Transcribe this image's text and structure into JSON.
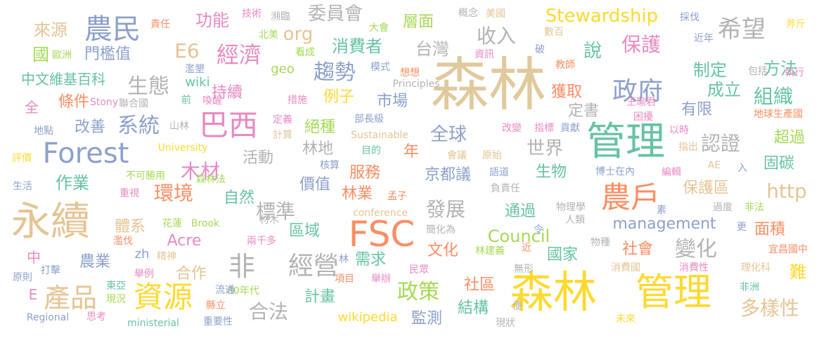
{
  "words": [
    {
      "text": "森林",
      "color": "#e0c99c"
    },
    {
      "text": "森林",
      "color": "#ffd92f"
    },
    {
      "text": "管理",
      "color": "#66c2a5"
    },
    {
      "text": "管理",
      "color": "#ffd92f"
    },
    {
      "text": "永續",
      "color": "#e5c494"
    },
    {
      "text": "FSC",
      "color": "#fc8d62"
    },
    {
      "text": "Forest",
      "color": "#8da0cb"
    },
    {
      "text": "巴西",
      "color": "#e78ac3"
    },
    {
      "text": "農戶",
      "color": "#fc8d62"
    },
    {
      "text": "資源",
      "color": "#ffd92f"
    },
    {
      "text": "農民",
      "color": "#8da0cb"
    },
    {
      "text": "政府",
      "color": "#8da0cb"
    },
    {
      "text": "希望",
      "color": "#b3b3b3"
    },
    {
      "text": "經濟",
      "color": "#e78ac3"
    },
    {
      "text": "產品",
      "color": "#e5c494"
    },
    {
      "text": "非",
      "color": "#b3b3b3"
    },
    {
      "text": "經營",
      "color": "#b3b3b3"
    },
    {
      "text": "趨勢",
      "color": "#8da0cb"
    },
    {
      "text": "系統",
      "color": "#8da0cb"
    },
    {
      "text": "生態",
      "color": "#b3b3b3"
    },
    {
      "text": "Stewardship",
      "color": "#ffd92f"
    },
    {
      "text": "委員會",
      "color": "#b3b3b3"
    },
    {
      "text": "收入",
      "color": "#b3b3b3"
    },
    {
      "text": "保護",
      "color": "#e78ac3"
    },
    {
      "text": "http",
      "color": "#e5c494"
    },
    {
      "text": "Council",
      "color": "#a6d854"
    },
    {
      "text": "management",
      "color": "#8da0cb"
    },
    {
      "text": "政策",
      "color": "#a6d854"
    },
    {
      "text": "變化",
      "color": "#b3b3b3"
    },
    {
      "text": "木材",
      "color": "#e78ac3"
    },
    {
      "text": "環境",
      "color": "#fc8d62"
    },
    {
      "text": "標準",
      "color": "#b3b3b3"
    },
    {
      "text": "發展",
      "color": "#b3b3b3"
    },
    {
      "text": "全球",
      "color": "#8da0cb"
    },
    {
      "text": "世界",
      "color": "#b3b3b3"
    },
    {
      "text": "認證",
      "color": "#b3b3b3"
    },
    {
      "text": "組織",
      "color": "#66c2a5"
    },
    {
      "text": "合法",
      "color": "#b3b3b3"
    },
    {
      "text": "多樣性",
      "color": "#e5c494"
    },
    {
      "text": "E6",
      "color": "#e5c494"
    },
    {
      "text": "org",
      "color": "#e5c494"
    },
    {
      "text": "層面",
      "color": "#a6d854"
    },
    {
      "text": "說",
      "color": "#66c2a5"
    },
    {
      "text": "方法",
      "color": "#66c2a5"
    },
    {
      "text": "制定",
      "color": "#66c2a5"
    },
    {
      "text": "成立",
      "color": "#66c2a5"
    },
    {
      "text": "來源",
      "color": "#e5c494"
    },
    {
      "text": "功能",
      "color": "#e78ac3"
    },
    {
      "text": "消費者",
      "color": "#66c2a5"
    },
    {
      "text": "台灣",
      "color": "#b3b3b3"
    },
    {
      "text": "國",
      "color": "#a6d854"
    },
    {
      "text": "門檻值",
      "color": "#8da0cb"
    },
    {
      "text": "中文維基百科",
      "color": "#66c2a5"
    },
    {
      "text": "條件",
      "color": "#fc8d62"
    },
    {
      "text": "持續",
      "color": "#e78ac3"
    },
    {
      "text": "例子",
      "color": "#ffd92f"
    },
    {
      "text": "市場",
      "color": "#8da0cb"
    },
    {
      "text": "獲取",
      "color": "#fc8d62"
    },
    {
      "text": "定書",
      "color": "#b3b3b3"
    },
    {
      "text": "有限",
      "color": "#8da0cb"
    },
    {
      "text": "改善",
      "color": "#8da0cb"
    },
    {
      "text": "絕種",
      "color": "#a6d854"
    },
    {
      "text": "年",
      "color": "#fc8d62"
    },
    {
      "text": "超過",
      "color": "#a6d854"
    },
    {
      "text": "固碳",
      "color": "#66c2a5"
    },
    {
      "text": "作業",
      "color": "#66c2a5"
    },
    {
      "text": "活動",
      "color": "#b3b3b3"
    },
    {
      "text": "林地",
      "color": "#b3b3b3"
    },
    {
      "text": "服務",
      "color": "#fc8d62"
    },
    {
      "text": "京都議",
      "color": "#8da0cb"
    },
    {
      "text": "生物",
      "color": "#66c2a5"
    },
    {
      "text": "保護區",
      "color": "#e5c494"
    },
    {
      "text": "自然",
      "color": "#66c2a5"
    },
    {
      "text": "價值",
      "color": "#8da0cb"
    },
    {
      "text": "林業",
      "color": "#fc8d62"
    },
    {
      "text": "通過",
      "color": "#66c2a5"
    },
    {
      "text": "面積",
      "color": "#fc8d62"
    },
    {
      "text": "體系",
      "color": "#e5c494"
    },
    {
      "text": "區域",
      "color": "#66c2a5"
    },
    {
      "text": "Acre",
      "color": "#e78ac3"
    },
    {
      "text": "文化",
      "color": "#fc8d62"
    },
    {
      "text": "國家",
      "color": "#66c2a5"
    },
    {
      "text": "社會",
      "color": "#fc8d62"
    },
    {
      "text": "農業",
      "color": "#8da0cb"
    },
    {
      "text": "合作",
      "color": "#e5c494"
    },
    {
      "text": "需求",
      "color": "#66c2a5"
    },
    {
      "text": "社區",
      "color": "#fc8d62"
    },
    {
      "text": "難",
      "color": "#ffd92f"
    },
    {
      "text": "計畫",
      "color": "#66c2a5"
    },
    {
      "text": "結構",
      "color": "#66c2a5"
    },
    {
      "text": "監測",
      "color": "#8da0cb"
    },
    {
      "text": "wikipedia",
      "color": "#ffd92f"
    },
    {
      "text": "中",
      "color": "#e78ac3"
    },
    {
      "text": "E",
      "color": "#e78ac3"
    },
    {
      "text": "全",
      "color": "#e78ac3"
    },
    {
      "text": "wiki",
      "color": "#66c2a5"
    },
    {
      "text": "geo",
      "color": "#a6d854"
    },
    {
      "text": "zh",
      "color": "#8da0cb"
    },
    {
      "text": "University",
      "color": "#ffd92f"
    },
    {
      "text": "Regional",
      "color": "#8da0cb"
    },
    {
      "text": "ministerial",
      "color": "#66c2a5"
    },
    {
      "text": "conference",
      "color": "#e5c494"
    },
    {
      "text": "Sustainable",
      "color": "#e5c494"
    },
    {
      "text": "Principles",
      "color": "#b3b3b3"
    },
    {
      "text": "Brook",
      "color": "#a6d854"
    },
    {
      "text": "Stony",
      "color": "#e78ac3"
    },
    {
      "text": "80年代",
      "color": "#a6d854"
    },
    {
      "text": "兩千多",
      "color": "#e78ac3"
    },
    {
      "text": "森林法",
      "color": "#a6d854"
    },
    {
      "text": "不可勝用",
      "color": "#a6d854"
    },
    {
      "text": "花蓮",
      "color": "#a6d854"
    },
    {
      "text": "東亞",
      "color": "#66c2a5"
    },
    {
      "text": "歐洲",
      "color": "#a6d854"
    },
    {
      "text": "北美",
      "color": "#a6d854"
    },
    {
      "text": "美國",
      "color": "#e5c494"
    },
    {
      "text": "非洲",
      "color": "#66c2a5"
    },
    {
      "text": "宜昌國中",
      "color": "#fc8d62"
    },
    {
      "text": "地球生產國",
      "color": "#fc8d62"
    },
    {
      "text": "王瑜君",
      "color": "#e78ac3"
    },
    {
      "text": "博士在內",
      "color": "#8da0cb"
    },
    {
      "text": "責任",
      "color": "#fc8d62"
    },
    {
      "text": "技術",
      "color": "#e78ac3"
    },
    {
      "text": "瀕臨",
      "color": "#b3b3b3"
    },
    {
      "text": "大會",
      "color": "#a6d854"
    },
    {
      "text": "概念",
      "color": "#b3b3b3"
    },
    {
      "text": "採伐",
      "color": "#8da0cb"
    },
    {
      "text": "斧斤",
      "color": "#ffd92f"
    },
    {
      "text": "數百",
      "color": "#e5c494"
    },
    {
      "text": "近年",
      "color": "#8da0cb"
    },
    {
      "text": "破",
      "color": "#8da0cb"
    },
    {
      "text": "教師",
      "color": "#fc8d62"
    },
    {
      "text": "資訊",
      "color": "#e78ac3"
    },
    {
      "text": "看成",
      "color": "#a6d854"
    },
    {
      "text": "濫墾",
      "color": "#8da0cb"
    },
    {
      "text": "前",
      "color": "#66c2a5"
    },
    {
      "text": "喚醒",
      "color": "#e78ac3"
    },
    {
      "text": "措施",
      "color": "#e78ac3"
    },
    {
      "text": "模式",
      "color": "#8da0cb"
    },
    {
      "text": "想想",
      "color": "#fc8d62"
    },
    {
      "text": "包括",
      "color": "#b3b3b3"
    },
    {
      "text": "執行",
      "color": "#e78ac3"
    },
    {
      "text": "聯合國",
      "color": "#b3b3b3"
    },
    {
      "text": "地點",
      "color": "#8da0cb"
    },
    {
      "text": "山林",
      "color": "#b3b3b3"
    },
    {
      "text": "評價",
      "color": "#ffd92f"
    },
    {
      "text": "定義",
      "color": "#e78ac3"
    },
    {
      "text": "計算",
      "color": "#e5c494"
    },
    {
      "text": "部長級",
      "color": "#8da0cb"
    },
    {
      "text": "困擾",
      "color": "#e78ac3"
    },
    {
      "text": "改變",
      "color": "#e78ac3"
    },
    {
      "text": "指標",
      "color": "#e78ac3"
    },
    {
      "text": "貢獻",
      "color": "#8da0cb"
    },
    {
      "text": "以時",
      "color": "#e78ac3"
    },
    {
      "text": "指出",
      "color": "#e5c494"
    },
    {
      "text": "AE",
      "color": "#e5c494"
    },
    {
      "text": "入",
      "color": "#8da0cb"
    },
    {
      "text": "目的",
      "color": "#66c2a5"
    },
    {
      "text": "核算",
      "color": "#8da0cb"
    },
    {
      "text": "會議",
      "color": "#e5c494"
    },
    {
      "text": "原始",
      "color": "#e5c494"
    },
    {
      "text": "語道",
      "color": "#8da0cb"
    },
    {
      "text": "編輯",
      "color": "#e78ac3"
    },
    {
      "text": "生活",
      "color": "#8da0cb"
    },
    {
      "text": "重視",
      "color": "#e78ac3"
    },
    {
      "text": "孟子",
      "color": "#fc8d62"
    },
    {
      "text": "負責任",
      "color": "#b3b3b3"
    },
    {
      "text": "物理學",
      "color": "#b3b3b3"
    },
    {
      "text": "人類",
      "color": "#b3b3b3"
    },
    {
      "text": "素",
      "color": "#8da0cb"
    },
    {
      "text": "過度",
      "color": "#b3b3b3"
    },
    {
      "text": "非法",
      "color": "#a6d854"
    },
    {
      "text": "令",
      "color": "#8da0cb"
    },
    {
      "text": "更",
      "color": "#8da0cb"
    },
    {
      "text": "材木",
      "color": "#b3b3b3"
    },
    {
      "text": "簡化為",
      "color": "#b3b3b3"
    },
    {
      "text": "林建義",
      "color": "#a6d854"
    },
    {
      "text": "近",
      "color": "#fc8d62"
    },
    {
      "text": "物種",
      "color": "#b3b3b3"
    },
    {
      "text": "消費國",
      "color": "#e5c494"
    },
    {
      "text": "消費性",
      "color": "#e78ac3"
    },
    {
      "text": "理化科",
      "color": "#e5c494"
    },
    {
      "text": "濫伐",
      "color": "#fc8d62"
    },
    {
      "text": "精神",
      "color": "#e5c494"
    },
    {
      "text": "打擊",
      "color": "#8da0cb"
    },
    {
      "text": "舉例",
      "color": "#e78ac3"
    },
    {
      "text": "原則",
      "color": "#8da0cb"
    },
    {
      "text": "現況",
      "color": "#a6d854"
    },
    {
      "text": "流通",
      "color": "#8da0cb"
    },
    {
      "text": "縣立",
      "color": "#fc8d62"
    },
    {
      "text": "思考",
      "color": "#e78ac3"
    },
    {
      "text": "重要性",
      "color": "#8da0cb"
    },
    {
      "text": "林",
      "color": "#8da0cb"
    },
    {
      "text": "項目",
      "color": "#fc8d62"
    },
    {
      "text": "民眾",
      "color": "#e78ac3"
    },
    {
      "text": "無形",
      "color": "#b3b3b3"
    },
    {
      "text": "舉辦",
      "color": "#e78ac3"
    },
    {
      "text": "便",
      "color": "#b3b3b3"
    },
    {
      "text": "現狀",
      "color": "#b3b3b3"
    },
    {
      "text": "未來",
      "color": "#ffd92f"
    }
  ]
}
